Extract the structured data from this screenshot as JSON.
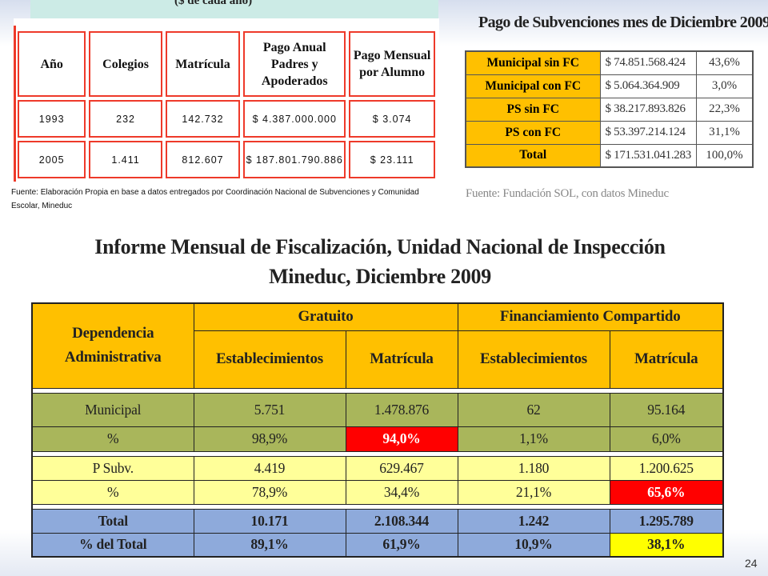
{
  "top_left": {
    "banner": "($ de cada año)",
    "headers": [
      "Año",
      "Colegios",
      "Matrícula",
      "Pago Anual Padres y Apoderados",
      "Pago Mensual por Alumno"
    ],
    "rows": [
      [
        "1993",
        "232",
        "142.732",
        "$ 4.387.000.000",
        "$ 3.074"
      ],
      [
        "2005",
        "1.411",
        "812.607",
        "$ 187.801.790.886",
        "$ 23.111"
      ]
    ],
    "source": "Fuente: Elaboración Propia en base a datos entregados por Coordinación Nacional de Subvenciones y Comunidad Escolar, Mineduc"
  },
  "top_right": {
    "title": "Pago de Subvenciones mes de Diciembre 2009",
    "rows": [
      {
        "label": "Municipal sin FC",
        "amount": "$ 74.851.568.424",
        "percent": "43,6%"
      },
      {
        "label": "Municipal con FC",
        "amount": "$ 5.064.364.909",
        "percent": "3,0%"
      },
      {
        "label": "PS sin FC",
        "amount": "$ 38.217.893.826",
        "percent": "22,3%"
      },
      {
        "label": "PS con FC",
        "amount": "$ 53.397.214.124",
        "percent": "31,1%"
      },
      {
        "label": "Total",
        "amount": "$ 171.531.041.283",
        "percent": "100,0%"
      }
    ],
    "source": "Fuente: Fundación SOL, con datos Mineduc"
  },
  "main_title": "Informe Mensual de Fiscalización, Unidad Nacional de Inspección Mineduc, Diciembre 2009",
  "bottom_table": {
    "dependencia": "Dependencia Administrativa",
    "gratuito": "Gratuito",
    "financiamiento": "Financiamiento Compartido",
    "establecimientos": "Establecimientos",
    "matricula": "Matrícula",
    "rows": {
      "municipal": [
        "Municipal",
        "5.751",
        "1.478.876",
        "62",
        "95.164"
      ],
      "municipal_pct": [
        "%",
        "98,9%",
        "94,0%",
        "1,1%",
        "6,0%"
      ],
      "psubv": [
        "P Subv.",
        "4.419",
        "629.467",
        "1.180",
        "1.200.625"
      ],
      "psubv_pct": [
        "%",
        "78,9%",
        "34,4%",
        "21,1%",
        "65,6%"
      ],
      "total": [
        "Total",
        "10.171",
        "2.108.344",
        "1.242",
        "1.295.789"
      ],
      "total_pct": [
        "% del Total",
        "89,1%",
        "61,9%",
        "10,9%",
        "38,1%"
      ]
    }
  },
  "highlight_colors": {
    "red": "#ff0000",
    "yellow": "#ffff00",
    "orange": "#ffc000",
    "olive": "#a9b65b",
    "blue": "#8eaadb"
  },
  "page_number": "24"
}
